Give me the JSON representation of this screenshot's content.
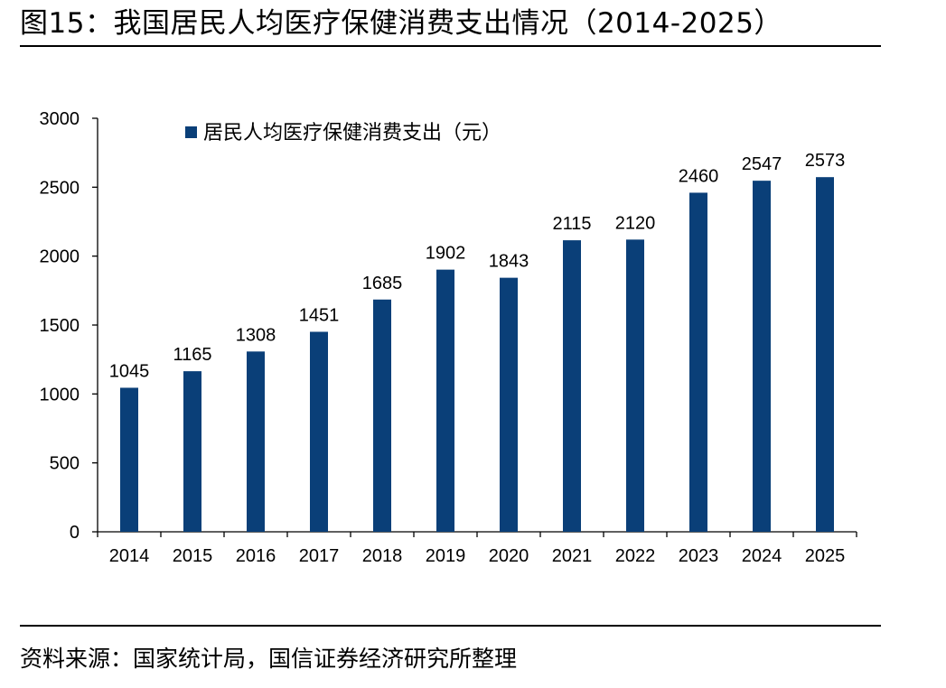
{
  "figure": {
    "title": "图15：我国居民人均医疗保健消费支出情况（2014-2025）",
    "source": "资料来源：国家统计局，国信证券经济研究所整理"
  },
  "colors": {
    "bar": "#0a3f78",
    "axis": "#000000",
    "text": "#000000"
  },
  "chart_data": {
    "type": "bar",
    "title": "",
    "xlabel": "",
    "ylabel": "",
    "categories": [
      "2014",
      "2015",
      "2016",
      "2017",
      "2018",
      "2019",
      "2020",
      "2021",
      "2022",
      "2023",
      "2024",
      "2025"
    ],
    "series": [
      {
        "name": "居民人均医疗保健消费支出（元）",
        "values": [
          1045,
          1165,
          1308,
          1451,
          1685,
          1902,
          1843,
          2115,
          2120,
          2460,
          2547,
          2573
        ]
      }
    ],
    "ylim": [
      0,
      3000
    ],
    "yticks": [
      0,
      500,
      1000,
      1500,
      2000,
      2500,
      3000
    ],
    "data_labels": true,
    "grid": false,
    "legend_position": "top-left"
  }
}
